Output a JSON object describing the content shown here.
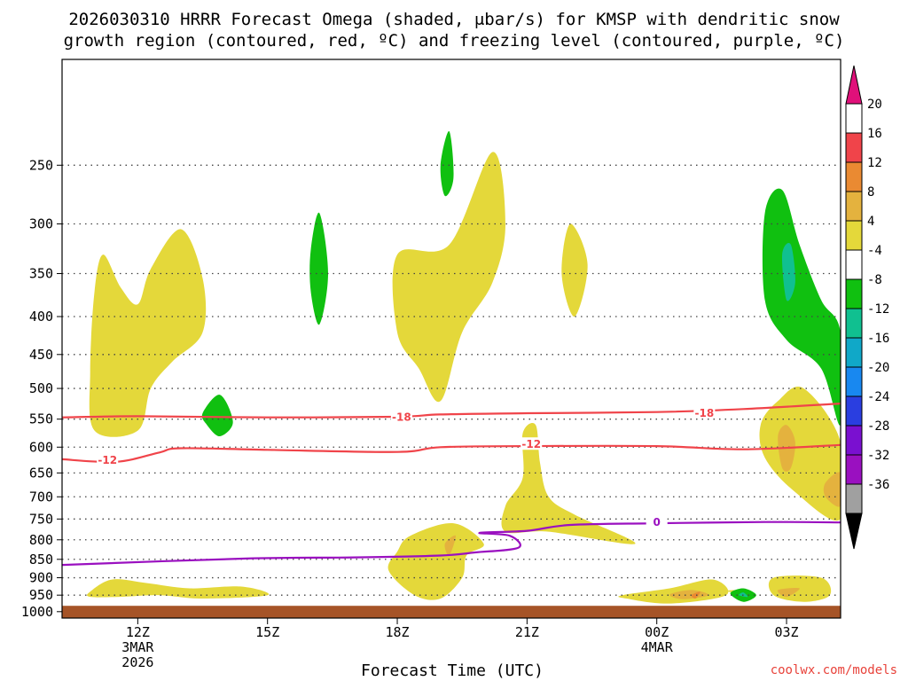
{
  "chart_data": {
    "type": "heatmap",
    "title_line1": "2026030310 HRRR Forecast Omega (shaded, μbar/s) for KMSP with dendritic snow",
    "title_line2": "growth region (contoured, red, ºC) and freezing level (contoured, purple, ºC)",
    "xlabel": "Forecast Time (UTC)",
    "credit": "coolwx.com/models",
    "x_range_hours": [
      10.25,
      28.25
    ],
    "y_range_mb": [
      1020,
      180
    ],
    "x_ticks": [
      {
        "hour": 12,
        "label": "12Z",
        "sub1": "3MAR",
        "sub2": "2026"
      },
      {
        "hour": 15,
        "label": "15Z"
      },
      {
        "hour": 18,
        "label": "18Z"
      },
      {
        "hour": 21,
        "label": "21Z"
      },
      {
        "hour": 24,
        "label": "00Z",
        "sub1": "4MAR"
      },
      {
        "hour": 27,
        "label": "03Z"
      }
    ],
    "y_ticks": [
      250,
      300,
      350,
      400,
      450,
      500,
      550,
      600,
      650,
      700,
      750,
      800,
      850,
      900,
      950,
      1000
    ],
    "colorbar": {
      "labels": [
        "20",
        "16",
        "12",
        "8",
        "4",
        "-4",
        "-8",
        "-12",
        "-16",
        "-20",
        "-24",
        "-28",
        "-32",
        "-36"
      ],
      "colors": [
        "#ffffff",
        "#f0444a",
        "#ea8a32",
        "#e4b23e",
        "#e4d83a",
        "#ffffff",
        "#10c010",
        "#10c090",
        "#10a8c8",
        "#1888f0",
        "#2a3ee0",
        "#7a10d0",
        "#9a10c0",
        "#a0a0a0"
      ],
      "top_arrow_color": "#e0107a",
      "bottom_arrow_color": "#000000"
    },
    "shaded_regions": [
      {
        "name": "ascent-4-8",
        "color": "#e4d83a",
        "points": [
          [
            10.9,
            940
          ],
          [
            11.4,
            905
          ],
          [
            12.2,
            915
          ],
          [
            13.2,
            930
          ],
          [
            14.4,
            925
          ],
          [
            15.0,
            950
          ],
          [
            13.5,
            960
          ],
          [
            12.5,
            950
          ],
          [
            11.6,
            955
          ],
          [
            10.9,
            955
          ]
        ]
      },
      {
        "name": "ascent-4-8",
        "color": "#e4d83a",
        "points": [
          [
            11.0,
            370
          ],
          [
            11.2,
            330
          ],
          [
            11.6,
            365
          ],
          [
            12.0,
            385
          ],
          [
            12.3,
            345
          ],
          [
            13.0,
            305
          ],
          [
            13.5,
            355
          ],
          [
            13.5,
            420
          ],
          [
            12.8,
            460
          ],
          [
            12.3,
            500
          ],
          [
            12.0,
            570
          ],
          [
            11.0,
            570
          ],
          [
            10.9,
            475
          ]
        ]
      },
      {
        "name": "ascent-4-8",
        "color": "#e4d83a",
        "points": [
          [
            18.0,
            330
          ],
          [
            19.2,
            320
          ],
          [
            20.2,
            240
          ],
          [
            20.5,
            300
          ],
          [
            20.2,
            360
          ],
          [
            19.5,
            420
          ],
          [
            19.0,
            520
          ],
          [
            18.5,
            470
          ],
          [
            18.0,
            420
          ]
        ]
      },
      {
        "name": "ascent-4-8",
        "color": "#e4d83a",
        "points": [
          [
            22.0,
            300
          ],
          [
            22.4,
            340
          ],
          [
            22.1,
            400
          ],
          [
            21.8,
            350
          ]
        ]
      },
      {
        "name": "ascent-4-8",
        "color": "#e4d83a",
        "points": [
          [
            20.9,
            575
          ],
          [
            21.2,
            560
          ],
          [
            21.3,
            630
          ],
          [
            21.5,
            700
          ],
          [
            22.1,
            740
          ],
          [
            23.5,
            810
          ],
          [
            21.5,
            780
          ],
          [
            20.5,
            780
          ],
          [
            20.5,
            720
          ],
          [
            20.9,
            660
          ]
        ]
      },
      {
        "name": "ascent-4-8",
        "color": "#e4d83a",
        "points": [
          [
            18.0,
            830
          ],
          [
            18.3,
            790
          ],
          [
            19.3,
            760
          ],
          [
            20.0,
            810
          ],
          [
            19.6,
            840
          ],
          [
            19.5,
            900
          ],
          [
            19.0,
            960
          ],
          [
            18.4,
            950
          ],
          [
            17.8,
            880
          ]
        ]
      },
      {
        "name": "ascent-4-8",
        "color": "#e4d83a",
        "points": [
          [
            23.2,
            950
          ],
          [
            24.3,
            930
          ],
          [
            25.3,
            905
          ],
          [
            25.6,
            950
          ],
          [
            24.3,
            975
          ],
          [
            23.3,
            960
          ]
        ]
      },
      {
        "name": "ascent-4-8",
        "color": "#e4d83a",
        "points": [
          [
            25.6,
            937
          ],
          [
            25.9,
            935
          ],
          [
            25.8,
            942
          ]
        ]
      },
      {
        "name": "ascent-4-8",
        "color": "#e4d83a",
        "points": [
          [
            26.7,
            900
          ],
          [
            27.8,
            900
          ],
          [
            28.0,
            950
          ],
          [
            27.4,
            970
          ],
          [
            26.7,
            950
          ]
        ]
      },
      {
        "name": "ascent-4-8",
        "color": "#e4d83a",
        "points": [
          [
            26.4,
            560
          ],
          [
            26.8,
            520
          ],
          [
            27.4,
            500
          ],
          [
            28.25,
            590
          ],
          [
            28.25,
            750
          ],
          [
            27.2,
            690
          ],
          [
            26.5,
            620
          ]
        ]
      },
      {
        "name": "ascent-8-12",
        "color": "#e4b23e",
        "points": [
          [
            19.1,
            810
          ],
          [
            19.35,
            790
          ],
          [
            19.2,
            840
          ]
        ]
      },
      {
        "name": "ascent-8-12",
        "color": "#e4b23e",
        "points": [
          [
            24.3,
            948
          ],
          [
            24.8,
            935
          ],
          [
            25.2,
            950
          ],
          [
            24.6,
            962
          ]
        ]
      },
      {
        "name": "ascent-8-12",
        "color": "#e4b23e",
        "points": [
          [
            26.8,
            935
          ],
          [
            27.3,
            930
          ],
          [
            27.0,
            955
          ]
        ]
      },
      {
        "name": "ascent-8-12",
        "color": "#e4b23e",
        "points": [
          [
            26.8,
            580
          ],
          [
            27.0,
            560
          ],
          [
            27.2,
            590
          ],
          [
            27.1,
            640
          ],
          [
            26.9,
            640
          ]
        ]
      },
      {
        "name": "ascent-8-12",
        "color": "#e4b23e",
        "points": [
          [
            27.9,
            670
          ],
          [
            28.25,
            650
          ],
          [
            28.25,
            720
          ],
          [
            27.9,
            700
          ]
        ]
      },
      {
        "name": "ascent-12-16",
        "color": "#ea8a32",
        "points": [
          [
            24.8,
            950
          ],
          [
            25.0,
            940
          ],
          [
            24.9,
            960
          ]
        ]
      },
      {
        "name": "descent-4-8",
        "color": "#10c010",
        "points": [
          [
            19.0,
            250
          ],
          [
            19.2,
            225
          ],
          [
            19.3,
            260
          ],
          [
            19.1,
            275
          ]
        ]
      },
      {
        "name": "descent-4-8",
        "color": "#10c010",
        "points": [
          [
            16.0,
            325
          ],
          [
            16.2,
            290
          ],
          [
            16.4,
            350
          ],
          [
            16.2,
            410
          ],
          [
            16.0,
            370
          ]
        ]
      },
      {
        "name": "descent-4-8",
        "color": "#10c010",
        "points": [
          [
            13.5,
            540
          ],
          [
            13.9,
            510
          ],
          [
            14.2,
            555
          ],
          [
            13.9,
            580
          ],
          [
            13.6,
            560
          ]
        ]
      },
      {
        "name": "descent-4-8",
        "color": "#10c010",
        "points": [
          [
            26.5,
            290
          ],
          [
            26.9,
            270
          ],
          [
            27.3,
            320
          ],
          [
            27.8,
            380
          ],
          [
            28.25,
            420
          ],
          [
            28.25,
            560
          ],
          [
            27.8,
            470
          ],
          [
            27.0,
            430
          ],
          [
            26.5,
            380
          ]
        ]
      },
      {
        "name": "descent-4-8",
        "color": "#10c010",
        "points": [
          [
            25.7,
            945
          ],
          [
            26.0,
            930
          ],
          [
            26.3,
            950
          ],
          [
            26.0,
            970
          ]
        ]
      },
      {
        "name": "descent-8-12",
        "color": "#10c090",
        "points": [
          [
            26.9,
            330
          ],
          [
            27.1,
            320
          ],
          [
            27.2,
            360
          ],
          [
            27.0,
            380
          ]
        ]
      },
      {
        "name": "descent-8-12",
        "color": "#10c090",
        "points": [
          [
            25.9,
            950
          ],
          [
            26.0,
            942
          ],
          [
            26.1,
            955
          ]
        ]
      }
    ],
    "contours": [
      {
        "name": "temp-minus-18",
        "color": "#f0444a",
        "label": "-18",
        "label_at": [
          18.1,
          547
        ],
        "label_at2": [
          25.1,
          540
        ],
        "points": [
          [
            10.25,
            547
          ],
          [
            12,
            545
          ],
          [
            15,
            547
          ],
          [
            18,
            546
          ],
          [
            19,
            542
          ],
          [
            21,
            540
          ],
          [
            24,
            538
          ],
          [
            26,
            533
          ],
          [
            28.25,
            524
          ]
        ]
      },
      {
        "name": "temp-minus-12",
        "color": "#f0444a",
        "label": "-12",
        "label_at": [
          11.3,
          625
        ],
        "label_at2": [
          21.1,
          595
        ],
        "points": [
          [
            10.25,
            623
          ],
          [
            11.5,
            628
          ],
          [
            12.5,
            610
          ],
          [
            13,
            602
          ],
          [
            15,
            605
          ],
          [
            18,
            609
          ],
          [
            19,
            600
          ],
          [
            21,
            598
          ],
          [
            24,
            598
          ],
          [
            26,
            604
          ],
          [
            28.25,
            596
          ]
        ]
      },
      {
        "name": "freezing-level",
        "color": "#9a10c0",
        "label": "0",
        "label_at": [
          24.0,
          758
        ],
        "points": [
          [
            10.25,
            865
          ],
          [
            14.5,
            848
          ],
          [
            17,
            845
          ],
          [
            19,
            840
          ],
          [
            19.8,
            832
          ],
          [
            20.8,
            820
          ],
          [
            20.6,
            790
          ],
          [
            19.9,
            783
          ],
          [
            21,
            778
          ],
          [
            22,
            764
          ],
          [
            24,
            760
          ],
          [
            26.5,
            757
          ],
          [
            28.25,
            758
          ]
        ]
      }
    ],
    "ground": {
      "from_mb": 982,
      "to_mb": 1020,
      "color": "#a65427"
    }
  }
}
